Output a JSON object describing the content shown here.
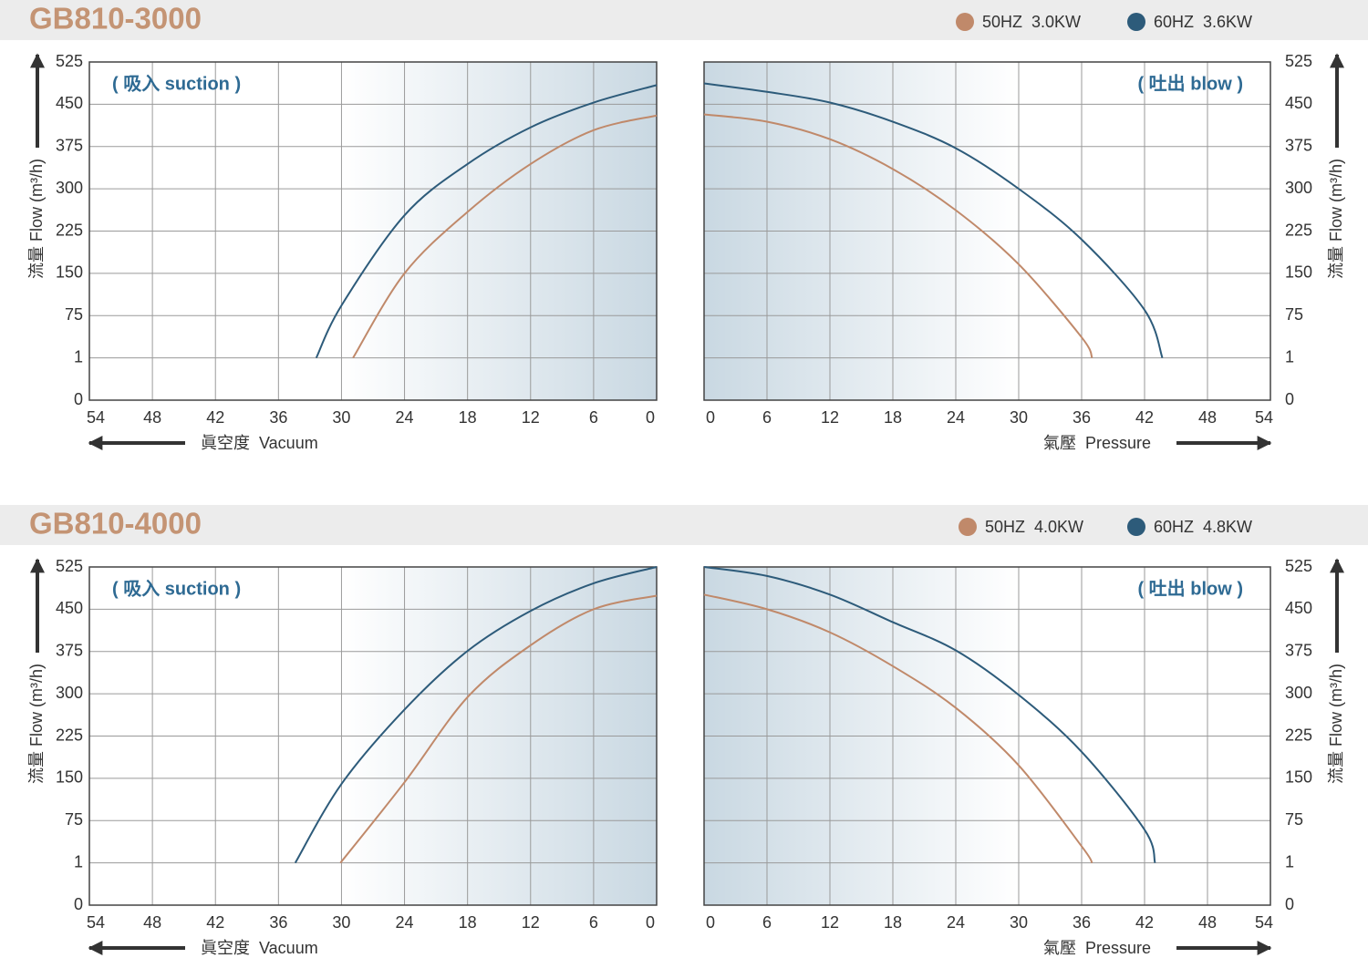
{
  "panels": [
    {
      "title": "GB810-3000"
    },
    {
      "title": "GB810-4000"
    }
  ],
  "chart_data": [
    {
      "type": "line",
      "title": "( 吸入 suction )",
      "xlabel": "眞空度  Vacuum",
      "ylabel": "流量 Flow (m³/h)",
      "xlim": [
        54,
        0
      ],
      "xticks": [
        54,
        48,
        42,
        36,
        30,
        24,
        18,
        12,
        6,
        0
      ],
      "ylim": [
        0,
        525
      ],
      "yticks": [
        0,
        1,
        75,
        150,
        225,
        300,
        375,
        450,
        525
      ],
      "grid": true,
      "series": [
        {
          "name": "50HZ  3.0KW",
          "color": "#c0896a",
          "x": [
            28.9,
            24,
            18,
            12,
            6,
            0
          ],
          "values": [
            1,
            150,
            259,
            344,
            404,
            430
          ]
        },
        {
          "name": "60HZ  3.6KW",
          "color": "#2d5b7a",
          "x": [
            32.4,
            30,
            24,
            18,
            12,
            6,
            0
          ],
          "values": [
            1,
            93,
            253,
            344,
            409,
            453,
            484
          ]
        }
      ]
    },
    {
      "type": "line",
      "title": "( 吐出 blow )",
      "xlabel": "氣壓  Pressure",
      "ylabel": "流量 Flow (m³/h)",
      "xlim": [
        0,
        54
      ],
      "xticks": [
        0,
        6,
        12,
        18,
        24,
        30,
        36,
        42,
        48,
        54
      ],
      "ylim": [
        0,
        525
      ],
      "yticks": [
        0,
        1,
        75,
        150,
        225,
        300,
        375,
        450,
        525
      ],
      "grid": true,
      "series": [
        {
          "color": "#c0896a",
          "x": [
            0,
            6,
            12,
            18,
            24,
            30,
            36,
            37
          ],
          "values": [
            432,
            419,
            388,
            335,
            262,
            166,
            37,
            1
          ]
        },
        {
          "color": "#2d5b7a",
          "x": [
            0,
            6,
            12,
            18,
            24,
            30,
            36,
            42,
            43.7
          ],
          "values": [
            487,
            472,
            453,
            419,
            372,
            300,
            210,
            85,
            1
          ]
        }
      ]
    },
    {
      "type": "line",
      "title": "( 吸入 suction )",
      "xlabel": "眞空度  Vacuum",
      "ylabel": "流量 Flow (m³/h)",
      "xlim": [
        54,
        0
      ],
      "xticks": [
        54,
        48,
        42,
        36,
        30,
        24,
        18,
        12,
        6,
        0
      ],
      "ylim": [
        0,
        525
      ],
      "yticks": [
        0,
        1,
        75,
        150,
        225,
        300,
        375,
        450,
        525
      ],
      "grid": true,
      "series": [
        {
          "name": "50HZ  4.0KW",
          "color": "#c0896a",
          "x": [
            30.1,
            24,
            18,
            12,
            6,
            0
          ],
          "values": [
            1,
            143,
            294,
            386,
            450,
            474
          ]
        },
        {
          "name": "60HZ  4.8KW",
          "color": "#2d5b7a",
          "x": [
            34.4,
            30,
            24,
            18,
            12,
            6,
            0
          ],
          "values": [
            1,
            140,
            272,
            376,
            447,
            496,
            525
          ]
        }
      ]
    },
    {
      "type": "line",
      "title": "( 吐出 blow )",
      "xlabel": "氣壓  Pressure",
      "ylabel": "流量 Flow (m³/h)",
      "xlim": [
        0,
        54
      ],
      "xticks": [
        0,
        6,
        12,
        18,
        24,
        30,
        36,
        42,
        48,
        54
      ],
      "ylim": [
        0,
        525
      ],
      "yticks": [
        0,
        1,
        75,
        150,
        225,
        300,
        375,
        450,
        525
      ],
      "grid": true,
      "series": [
        {
          "color": "#c0896a",
          "x": [
            0,
            6,
            12,
            18,
            24,
            30,
            36,
            37
          ],
          "values": [
            476,
            450,
            409,
            349,
            275,
            173,
            30,
            1
          ]
        },
        {
          "color": "#2d5b7a",
          "x": [
            0,
            6,
            12,
            18,
            24,
            30,
            36,
            42,
            43
          ],
          "values": [
            525,
            509,
            476,
            427,
            377,
            298,
            197,
            59,
            1
          ]
        }
      ]
    }
  ]
}
